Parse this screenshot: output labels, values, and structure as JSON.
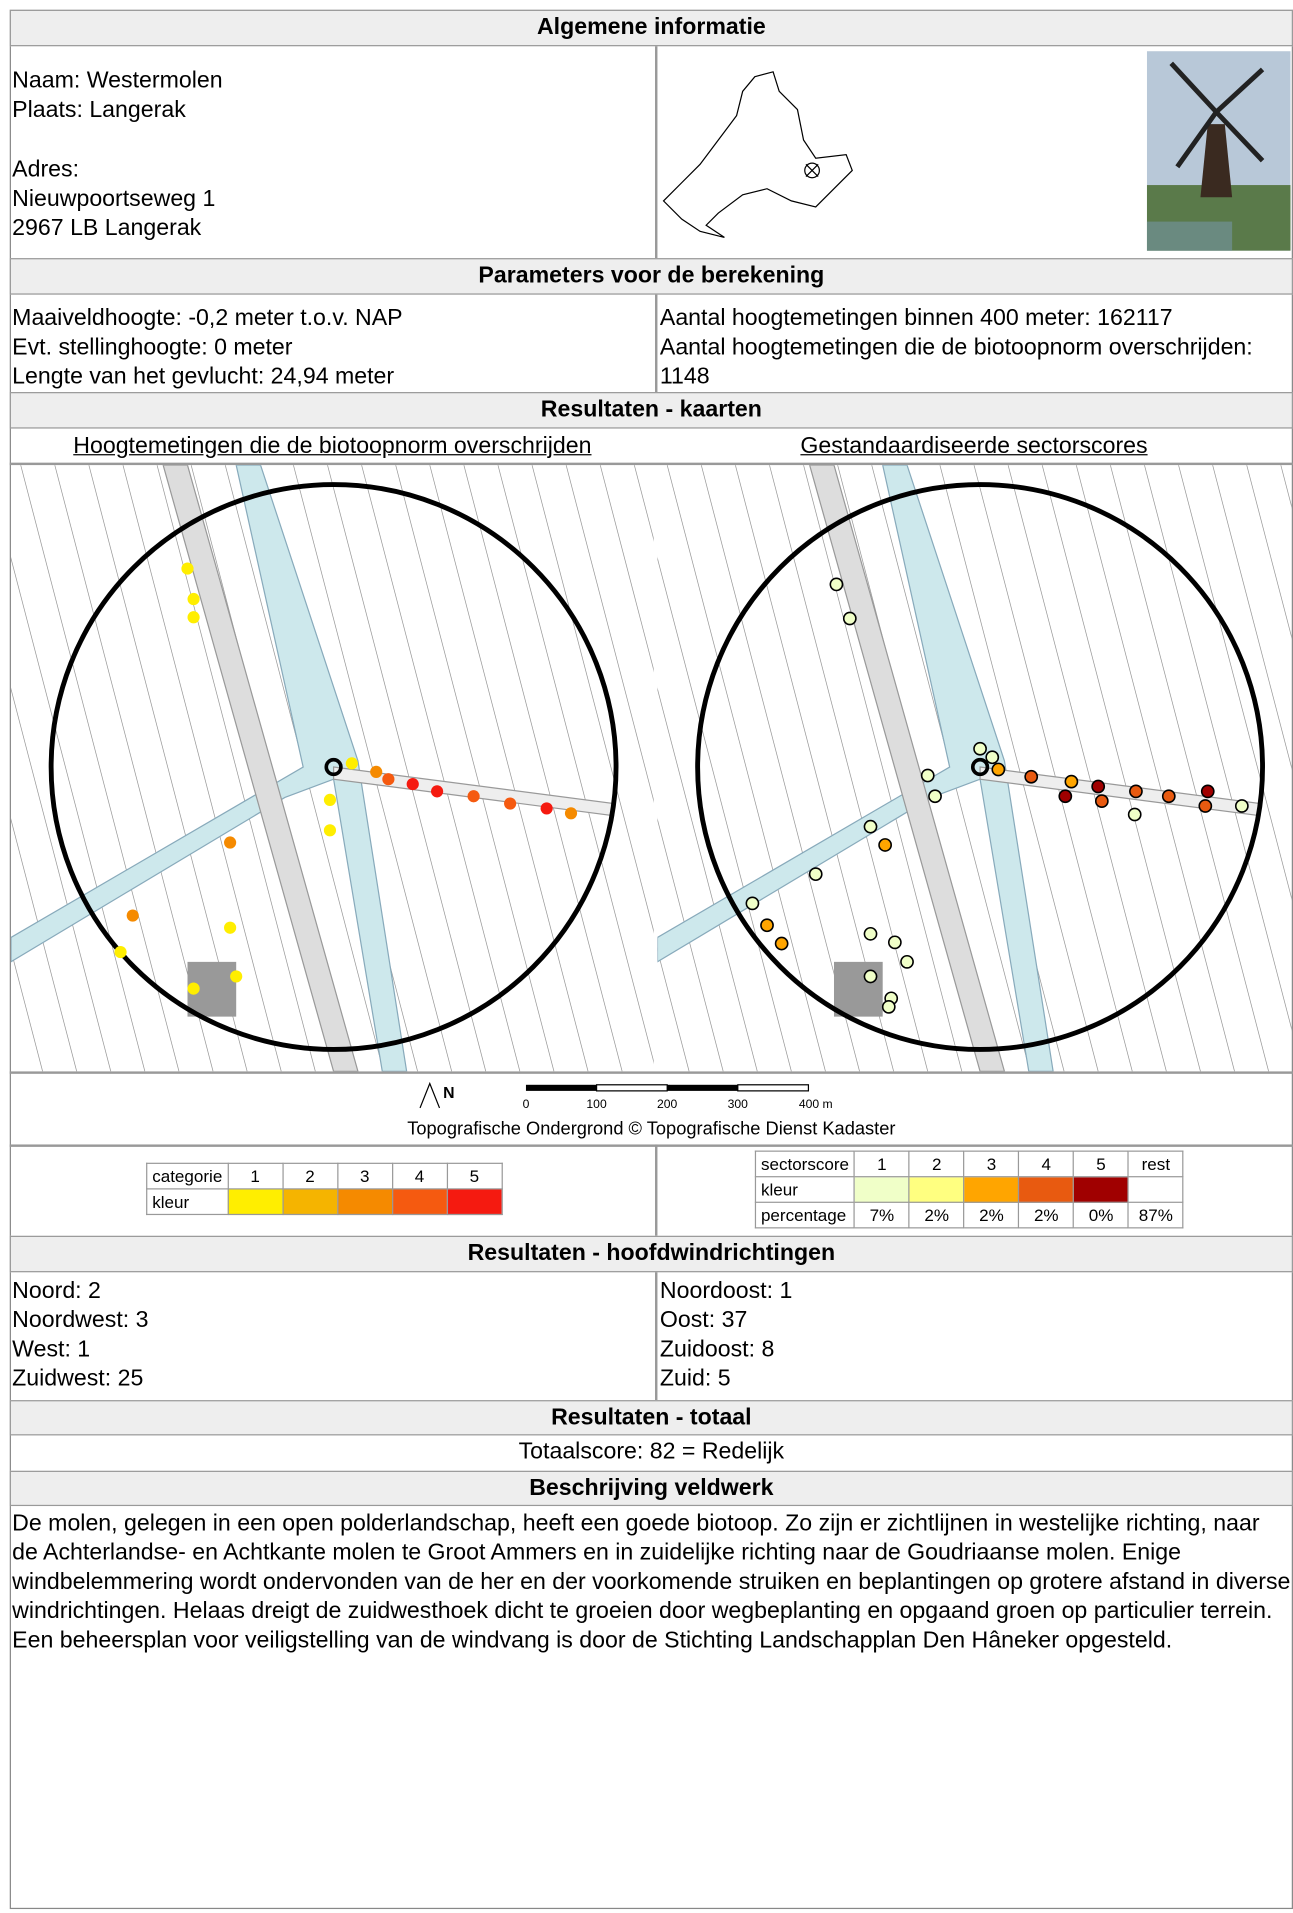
{
  "general": {
    "title": "Algemene informatie",
    "name": "Naam: Westermolen",
    "place": "Plaats: Langerak",
    "address_label": "Adres:",
    "street": "Nieuwpoortseweg 1",
    "postcode": "2967 LB Langerak"
  },
  "parameters": {
    "title": "Parameters voor de berekening",
    "left": [
      "Maaiveldhoogte: -0,2 meter t.o.v. NAP",
      "Evt. stellinghoogte: 0 meter",
      "Lengte van het gevlucht: 24,94 meter"
    ],
    "right": [
      "Aantal hoogtemetingen binnen 400 meter: 162117",
      "Aantal hoogtemetingen die de biotoopnorm overschrijden: 1148"
    ]
  },
  "maps": {
    "title": "Resultaten - kaarten",
    "left_title": "Hoogtemetingen die de biotoopnorm overschrijden",
    "right_title": "Gestandaardiseerde sectorscores",
    "north": "N",
    "scale": [
      "0",
      "100",
      "200",
      "300",
      "400 m"
    ],
    "credit": "Topografische Ondergrond © Topografische Dienst Kadaster"
  },
  "legend_left": {
    "header": "categorie",
    "categories": [
      "1",
      "2",
      "3",
      "4",
      "5"
    ],
    "color_label": "kleur",
    "colors": [
      "#ffee00",
      "#f5b400",
      "#f58a00",
      "#f55a10",
      "#f51a10"
    ]
  },
  "legend_right": {
    "header": "sectorscore",
    "categories": [
      "1",
      "2",
      "3",
      "4",
      "5",
      "rest"
    ],
    "color_label": "kleur",
    "colors": [
      "#f0ffc8",
      "#ffff80",
      "#ffa500",
      "#e85a10",
      "#a00000",
      "#ffffff"
    ],
    "percentage_label": "percentage",
    "percentages": [
      "7%",
      "2%",
      "2%",
      "2%",
      "0%",
      "87%"
    ]
  },
  "directions": {
    "title": "Resultaten - hoofdwindrichtingen",
    "left": [
      "Noord: 2",
      "Noordwest: 3",
      "West: 1",
      "Zuidwest: 25"
    ],
    "right": [
      "Noordoost: 1",
      "Oost: 37",
      "Zuidoost: 8",
      "Zuid: 5"
    ]
  },
  "total": {
    "title": "Resultaten - totaal",
    "text": "Totaalscore: 82 = Redelijk"
  },
  "fieldwork": {
    "title": "Beschrijving veldwerk",
    "text": "De molen, gelegen in een open polderlandschap, heeft een goede biotoop. Zo zijn er zichtlijnen in westelijke richting, naar de Achterlandse- en Achtkante molen te Groot Ammers en in zuidelijke richting naar de Goudriaanse molen. Enige windbelemmering wordt ondervonden van de her en der voorkomende struiken en beplantingen op grotere afstand in diverse windrichtingen. Helaas dreigt de zuidwesthoek dicht te groeien door wegbeplanting en opgaand groen op particulier terrein. Een beheersplan voor veiligstelling van de windvang is door de Stichting Landschapplan Den Hâneker opgesteld."
  }
}
